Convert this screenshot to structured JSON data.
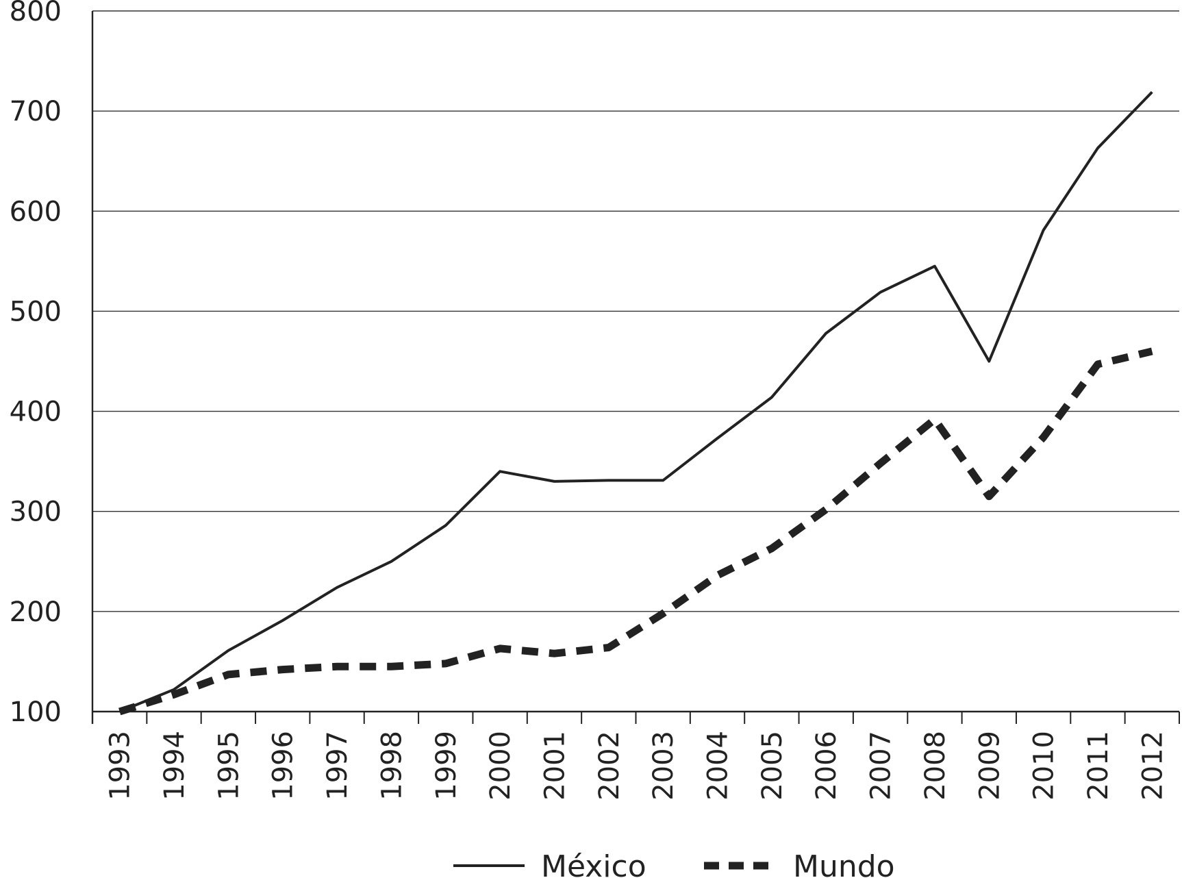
{
  "chart_data": {
    "type": "line",
    "categories": [
      "1993",
      "1994",
      "1995",
      "1996",
      "1997",
      "1998",
      "1999",
      "2000",
      "2001",
      "2002",
      "2003",
      "2004",
      "2005",
      "2006",
      "2007",
      "2008",
      "2009",
      "2010",
      "2011",
      "2012"
    ],
    "series": [
      {
        "name": "México",
        "style": "solid",
        "color": "#222222",
        "values": [
          100,
          122,
          161,
          191,
          224,
          250,
          286,
          340,
          330,
          331,
          331,
          373,
          414,
          478,
          519,
          545,
          450,
          581,
          663,
          719
        ]
      },
      {
        "name": "Mundo",
        "style": "dashed",
        "color": "#222222",
        "values": [
          100,
          117,
          137,
          142,
          145,
          145,
          148,
          163,
          158,
          164,
          198,
          236,
          263,
          302,
          348,
          392,
          315,
          374,
          447,
          460
        ]
      }
    ],
    "title": "",
    "xlabel": "",
    "ylabel": "",
    "ylim": [
      100,
      800
    ],
    "yticks": [
      "100",
      "200",
      "300",
      "400",
      "500",
      "600",
      "700",
      "800"
    ],
    "grid": "horizontal",
    "legend_position": "bottom-center"
  }
}
